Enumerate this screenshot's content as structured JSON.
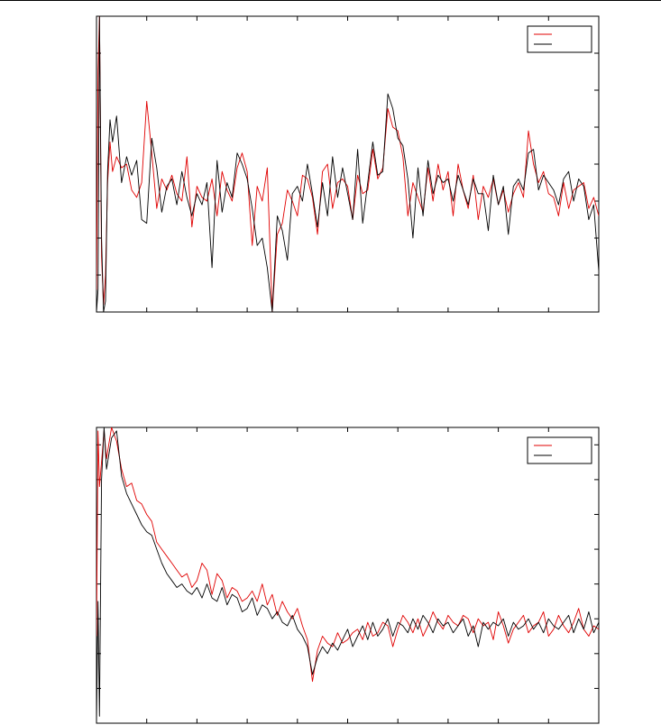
{
  "chart_data": [
    {
      "type": "line",
      "title": "",
      "xlabel": "",
      "ylabel": "",
      "xlim": [
        0,
        1000
      ],
      "ylim": [
        0,
        8
      ],
      "x_ticks": [
        0,
        100,
        200,
        300,
        400,
        500,
        600,
        700,
        800,
        900,
        1000
      ],
      "y_ticks": [
        0,
        1,
        2,
        3,
        4,
        5,
        6,
        7,
        8
      ],
      "tick_labels_shown": false,
      "grid": false,
      "legend": {
        "placement": "top-right",
        "entries_labeled": false
      },
      "colors": {
        "series_a": "#e00000",
        "series_b": "#000000"
      },
      "series": [
        {
          "color": "#e00000",
          "x": [
            0,
            3,
            6,
            10,
            14,
            18,
            22,
            27,
            32,
            40,
            50,
            60,
            70,
            80,
            90,
            100,
            110,
            120,
            130,
            140,
            150,
            160,
            170,
            180,
            190,
            200,
            210,
            220,
            230,
            240,
            250,
            260,
            270,
            280,
            290,
            300,
            310,
            320,
            330,
            340,
            350,
            360,
            370,
            380,
            390,
            400,
            410,
            420,
            430,
            440,
            450,
            460,
            470,
            480,
            490,
            500,
            510,
            520,
            530,
            540,
            550,
            560,
            570,
            580,
            590,
            600,
            610,
            620,
            630,
            640,
            650,
            660,
            670,
            680,
            690,
            700,
            710,
            720,
            730,
            740,
            750,
            760,
            770,
            780,
            790,
            800,
            810,
            820,
            830,
            840,
            850,
            860,
            870,
            880,
            890,
            900,
            910,
            920,
            930,
            940,
            950,
            960,
            970,
            980,
            990,
            1000
          ],
          "y": [
            0.6,
            6.5,
            8.0,
            1.5,
            0.2,
            1.0,
            3.5,
            4.6,
            3.8,
            4.2,
            3.9,
            4.0,
            3.3,
            3.1,
            3.5,
            5.7,
            4.3,
            2.8,
            3.6,
            3.3,
            3.7,
            3.2,
            3.0,
            4.2,
            2.3,
            3.4,
            3.1,
            3.0,
            3.6,
            2.6,
            3.8,
            3.3,
            3.0,
            3.9,
            4.3,
            3.8,
            1.8,
            3.4,
            3.0,
            3.9,
            0.0,
            2.1,
            2.4,
            3.3,
            3.0,
            2.6,
            3.7,
            3.6,
            3.1,
            2.1,
            3.8,
            4.0,
            2.8,
            3.5,
            3.6,
            3.4,
            2.5,
            3.7,
            3.2,
            3.3,
            4.4,
            3.6,
            3.9,
            5.5,
            5.0,
            4.9,
            4.2,
            2.6,
            3.5,
            3.1,
            2.7,
            3.9,
            3.0,
            4.0,
            3.3,
            3.8,
            2.6,
            4.0,
            3.3,
            2.8,
            3.7,
            2.5,
            3.4,
            3.1,
            3.6,
            2.9,
            3.3,
            2.7,
            3.2,
            3.5,
            3.1,
            4.9,
            4.0,
            3.5,
            3.8,
            3.2,
            3.1,
            2.6,
            3.5,
            2.8,
            3.3,
            3.4,
            3.5,
            2.8,
            3.1,
            2.6
          ]
        },
        {
          "color": "#000000",
          "x": [
            0,
            3,
            6,
            10,
            14,
            18,
            22,
            27,
            32,
            40,
            50,
            60,
            70,
            80,
            90,
            100,
            110,
            120,
            130,
            140,
            150,
            160,
            170,
            180,
            190,
            200,
            210,
            220,
            230,
            240,
            250,
            260,
            270,
            280,
            290,
            300,
            310,
            320,
            330,
            340,
            350,
            360,
            370,
            380,
            390,
            400,
            410,
            420,
            430,
            440,
            450,
            460,
            470,
            480,
            490,
            500,
            510,
            520,
            530,
            540,
            550,
            560,
            570,
            580,
            590,
            600,
            610,
            620,
            630,
            640,
            650,
            660,
            670,
            680,
            690,
            700,
            710,
            720,
            730,
            740,
            750,
            760,
            770,
            780,
            790,
            800,
            810,
            820,
            830,
            840,
            850,
            860,
            870,
            880,
            890,
            900,
            910,
            920,
            930,
            940,
            950,
            960,
            970,
            980,
            990,
            1000
          ],
          "y": [
            0.0,
            0.6,
            8.0,
            2.0,
            0.0,
            0.3,
            3.8,
            5.2,
            4.6,
            5.3,
            3.5,
            4.2,
            3.7,
            4.1,
            2.5,
            2.4,
            4.7,
            3.9,
            2.7,
            3.4,
            3.6,
            2.9,
            3.8,
            3.1,
            2.6,
            3.2,
            2.9,
            3.5,
            1.2,
            4.1,
            2.7,
            3.5,
            3.1,
            4.3,
            4.0,
            3.6,
            2.8,
            1.8,
            2.0,
            1.2,
            0.0,
            2.6,
            2.2,
            1.4,
            3.2,
            3.4,
            3.0,
            4.0,
            3.2,
            2.3,
            3.5,
            2.6,
            4.2,
            3.1,
            3.9,
            3.2,
            2.5,
            4.4,
            2.4,
            3.5,
            4.6,
            3.7,
            3.8,
            5.9,
            5.5,
            4.7,
            4.5,
            3.6,
            2.0,
            3.9,
            2.6,
            4.1,
            3.2,
            3.7,
            3.5,
            3.6,
            3.0,
            3.7,
            3.3,
            2.9,
            3.6,
            3.2,
            3.2,
            2.2,
            3.7,
            2.9,
            3.4,
            2.1,
            3.4,
            3.6,
            3.3,
            4.3,
            4.4,
            3.3,
            3.7,
            3.5,
            3.3,
            2.9,
            3.6,
            3.8,
            3.0,
            3.6,
            3.4,
            2.5,
            2.9,
            1.1
          ]
        }
      ]
    },
    {
      "type": "line",
      "title": "",
      "xlabel": "",
      "ylabel": "",
      "xlim": [
        0,
        1000
      ],
      "ylim": [
        0,
        8.5
      ],
      "x_ticks": [
        0,
        100,
        200,
        300,
        400,
        500,
        600,
        700,
        800,
        900,
        1000
      ],
      "y_ticks": [
        0,
        1,
        2,
        3,
        4,
        5,
        6,
        7,
        8
      ],
      "tick_labels_shown": false,
      "grid": false,
      "legend": {
        "placement": "top-right",
        "entries_labeled": false
      },
      "colors": {
        "series_a": "#e00000",
        "series_b": "#000000"
      },
      "series": [
        {
          "color": "#e00000",
          "x": [
            0,
            3,
            6,
            10,
            15,
            20,
            30,
            40,
            50,
            60,
            70,
            80,
            90,
            100,
            110,
            120,
            130,
            140,
            150,
            160,
            170,
            180,
            190,
            200,
            210,
            220,
            230,
            240,
            250,
            260,
            270,
            280,
            290,
            300,
            310,
            320,
            330,
            340,
            350,
            360,
            370,
            380,
            390,
            400,
            410,
            420,
            430,
            440,
            450,
            460,
            470,
            480,
            490,
            500,
            510,
            520,
            530,
            540,
            550,
            560,
            570,
            580,
            590,
            600,
            610,
            620,
            630,
            640,
            650,
            660,
            670,
            680,
            690,
            700,
            710,
            720,
            730,
            740,
            750,
            760,
            770,
            780,
            790,
            800,
            810,
            820,
            830,
            840,
            850,
            860,
            870,
            880,
            890,
            900,
            910,
            920,
            930,
            940,
            950,
            960,
            970,
            980,
            990,
            1000
          ],
          "y": [
            2.5,
            8.4,
            6.8,
            7.5,
            8.4,
            7.6,
            8.5,
            8.1,
            7.3,
            6.8,
            6.9,
            6.4,
            6.3,
            6.0,
            5.8,
            5.2,
            5.0,
            4.8,
            4.6,
            4.4,
            4.2,
            4.3,
            3.9,
            4.1,
            4.6,
            4.4,
            3.7,
            4.3,
            4.1,
            3.6,
            3.9,
            3.8,
            3.5,
            3.6,
            3.8,
            3.5,
            4.0,
            3.4,
            3.7,
            3.1,
            3.5,
            3.2,
            3.0,
            3.3,
            2.8,
            2.4,
            1.2,
            2.1,
            2.5,
            2.3,
            2.2,
            2.6,
            2.3,
            2.4,
            2.6,
            2.7,
            2.4,
            2.9,
            2.5,
            2.6,
            2.9,
            2.8,
            2.2,
            2.7,
            3.1,
            2.9,
            2.6,
            3.0,
            2.5,
            2.8,
            3.2,
            2.9,
            2.7,
            3.1,
            2.9,
            2.8,
            3.1,
            3.0,
            2.6,
            3.0,
            2.8,
            2.9,
            2.4,
            3.2,
            2.8,
            2.3,
            2.7,
            2.9,
            3.1,
            2.6,
            2.8,
            2.9,
            3.2,
            2.5,
            2.7,
            3.1,
            2.8,
            2.6,
            2.9,
            3.3,
            2.7,
            2.5,
            2.8,
            2.7
          ]
        },
        {
          "color": "#000000",
          "x": [
            0,
            3,
            6,
            10,
            15,
            20,
            30,
            40,
            50,
            60,
            70,
            80,
            90,
            100,
            110,
            120,
            130,
            140,
            150,
            160,
            170,
            180,
            190,
            200,
            210,
            220,
            230,
            240,
            250,
            260,
            270,
            280,
            290,
            300,
            310,
            320,
            330,
            340,
            350,
            360,
            370,
            380,
            390,
            400,
            410,
            420,
            430,
            440,
            450,
            460,
            470,
            480,
            490,
            500,
            510,
            520,
            530,
            540,
            550,
            560,
            570,
            580,
            590,
            600,
            610,
            620,
            630,
            640,
            650,
            660,
            670,
            680,
            690,
            700,
            710,
            720,
            730,
            740,
            750,
            760,
            770,
            780,
            790,
            800,
            810,
            820,
            830,
            840,
            850,
            860,
            870,
            880,
            890,
            900,
            910,
            920,
            930,
            940,
            950,
            960,
            970,
            980,
            990,
            1000
          ],
          "y": [
            0.0,
            3.5,
            0.2,
            7.0,
            8.5,
            7.3,
            8.2,
            8.4,
            7.1,
            6.6,
            6.3,
            6.0,
            5.7,
            5.5,
            5.4,
            5.0,
            4.6,
            4.3,
            4.1,
            3.9,
            4.0,
            3.8,
            3.7,
            3.9,
            3.6,
            4.0,
            3.6,
            3.5,
            3.9,
            3.4,
            3.7,
            3.6,
            3.2,
            3.3,
            3.6,
            3.1,
            3.4,
            3.3,
            3.0,
            3.2,
            2.9,
            2.8,
            3.1,
            2.7,
            2.5,
            2.2,
            1.4,
            1.9,
            2.2,
            2.0,
            2.3,
            2.1,
            2.4,
            2.7,
            2.2,
            2.5,
            2.8,
            2.4,
            2.9,
            2.5,
            2.7,
            3.0,
            2.5,
            2.9,
            2.8,
            2.6,
            3.0,
            2.7,
            3.1,
            2.9,
            2.6,
            3.0,
            2.8,
            2.9,
            2.6,
            2.8,
            3.0,
            2.5,
            2.8,
            2.2,
            2.9,
            2.7,
            2.9,
            2.8,
            3.0,
            2.5,
            2.9,
            2.7,
            2.8,
            3.0,
            2.7,
            2.9,
            2.6,
            3.0,
            2.8,
            2.7,
            2.9,
            3.1,
            2.6,
            3.0,
            2.7,
            3.2,
            2.6,
            2.9
          ]
        }
      ]
    }
  ]
}
